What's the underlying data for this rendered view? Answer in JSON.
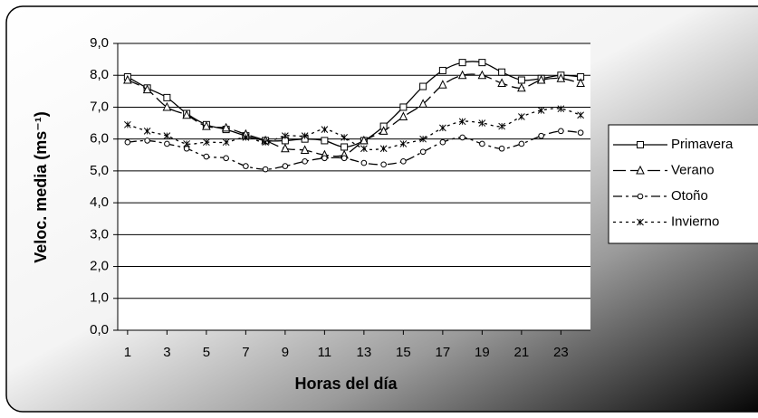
{
  "chart_data": {
    "type": "line",
    "xlabel": "Horas del día",
    "ylabel": "Veloc. media (ms⁻¹)",
    "x": [
      1,
      2,
      3,
      4,
      5,
      6,
      7,
      8,
      9,
      10,
      11,
      12,
      13,
      14,
      15,
      16,
      17,
      18,
      19,
      20,
      21,
      22,
      23,
      24
    ],
    "xlim": [
      0.5,
      24.5
    ],
    "xticks": [
      1,
      3,
      5,
      7,
      9,
      11,
      13,
      15,
      17,
      19,
      21,
      23
    ],
    "ylim": [
      0,
      9
    ],
    "yticks": [
      {
        "value": 0,
        "label": "0,0"
      },
      {
        "value": 1,
        "label": "1,0"
      },
      {
        "value": 2,
        "label": "2,0"
      },
      {
        "value": 3,
        "label": "3,0"
      },
      {
        "value": 4,
        "label": "4,0"
      },
      {
        "value": 5,
        "label": "5,0"
      },
      {
        "value": 6,
        "label": "6,0"
      },
      {
        "value": 7,
        "label": "7,0"
      },
      {
        "value": 8,
        "label": "8,0"
      },
      {
        "value": 9,
        "label": "9,0"
      }
    ],
    "grid": true,
    "legend": "right",
    "series": [
      {
        "name": "Primavera",
        "color": "#000000",
        "marker": "square",
        "dash": "solid",
        "values": [
          7.95,
          7.6,
          7.3,
          6.8,
          6.45,
          6.3,
          6.1,
          5.95,
          5.95,
          6.0,
          5.95,
          5.75,
          5.95,
          6.4,
          7.0,
          7.65,
          8.15,
          8.4,
          8.4,
          8.1,
          7.85,
          7.9,
          8.0,
          7.95
        ]
      },
      {
        "name": "Verano",
        "color": "#000000",
        "marker": "triangle",
        "dash": "dash",
        "values": [
          7.85,
          7.55,
          7.0,
          6.75,
          6.4,
          6.35,
          6.15,
          5.95,
          5.7,
          5.65,
          5.5,
          5.5,
          5.95,
          6.25,
          6.7,
          7.1,
          7.7,
          8.0,
          8.0,
          7.75,
          7.6,
          7.85,
          7.9,
          7.75
        ]
      },
      {
        "name": "Otoño",
        "color": "#000000",
        "marker": "circle",
        "dash": "dashdot",
        "values": [
          5.9,
          5.95,
          5.85,
          5.7,
          5.45,
          5.4,
          5.15,
          5.05,
          5.15,
          5.3,
          5.4,
          5.4,
          5.25,
          5.2,
          5.3,
          5.6,
          5.9,
          6.05,
          5.85,
          5.7,
          5.85,
          6.1,
          6.25,
          6.2
        ]
      },
      {
        "name": "Invierno",
        "color": "#000000",
        "marker": "star",
        "dash": "dot",
        "values": [
          6.45,
          6.25,
          6.1,
          5.85,
          5.9,
          5.9,
          6.05,
          5.9,
          6.1,
          6.1,
          6.3,
          6.05,
          5.7,
          5.7,
          5.85,
          6.0,
          6.35,
          6.55,
          6.5,
          6.4,
          6.7,
          6.9,
          6.95,
          6.75
        ]
      }
    ]
  }
}
